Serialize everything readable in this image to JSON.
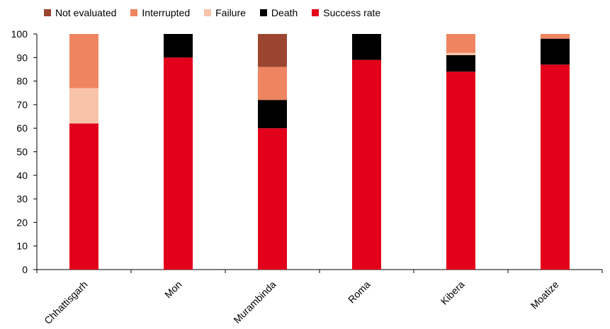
{
  "chart_data": {
    "type": "bar",
    "stacked": true,
    "categories": [
      "Chhattisgarh",
      "Mon",
      "Murambinda",
      "Roma",
      "Kibera",
      "Moatize"
    ],
    "series": [
      {
        "name": "Success rate",
        "color": "#e2001a",
        "values": [
          62,
          90,
          60,
          89,
          84,
          87
        ]
      },
      {
        "name": "Death",
        "color": "#000000",
        "values": [
          0,
          10,
          12,
          11,
          7,
          11
        ]
      },
      {
        "name": "Failure",
        "color": "#f7c4aa",
        "values": [
          15,
          0,
          0,
          0,
          1,
          0
        ]
      },
      {
        "name": "Interrupted",
        "color": "#ef8560",
        "values": [
          23,
          0,
          14,
          0,
          8,
          2
        ]
      },
      {
        "name": "Not evaluated",
        "color": "#9b4530",
        "values": [
          0,
          0,
          14,
          0,
          0,
          0
        ]
      }
    ],
    "legend_order": [
      "Not evaluated",
      "Interrupted",
      "Failure",
      "Death",
      "Success rate"
    ],
    "legend_position": "top-left",
    "ylim": [
      0,
      100
    ],
    "yticks": [
      0,
      10,
      20,
      30,
      40,
      50,
      60,
      70,
      80,
      90,
      100
    ],
    "xlabel": "",
    "ylabel": "",
    "grid": false
  }
}
